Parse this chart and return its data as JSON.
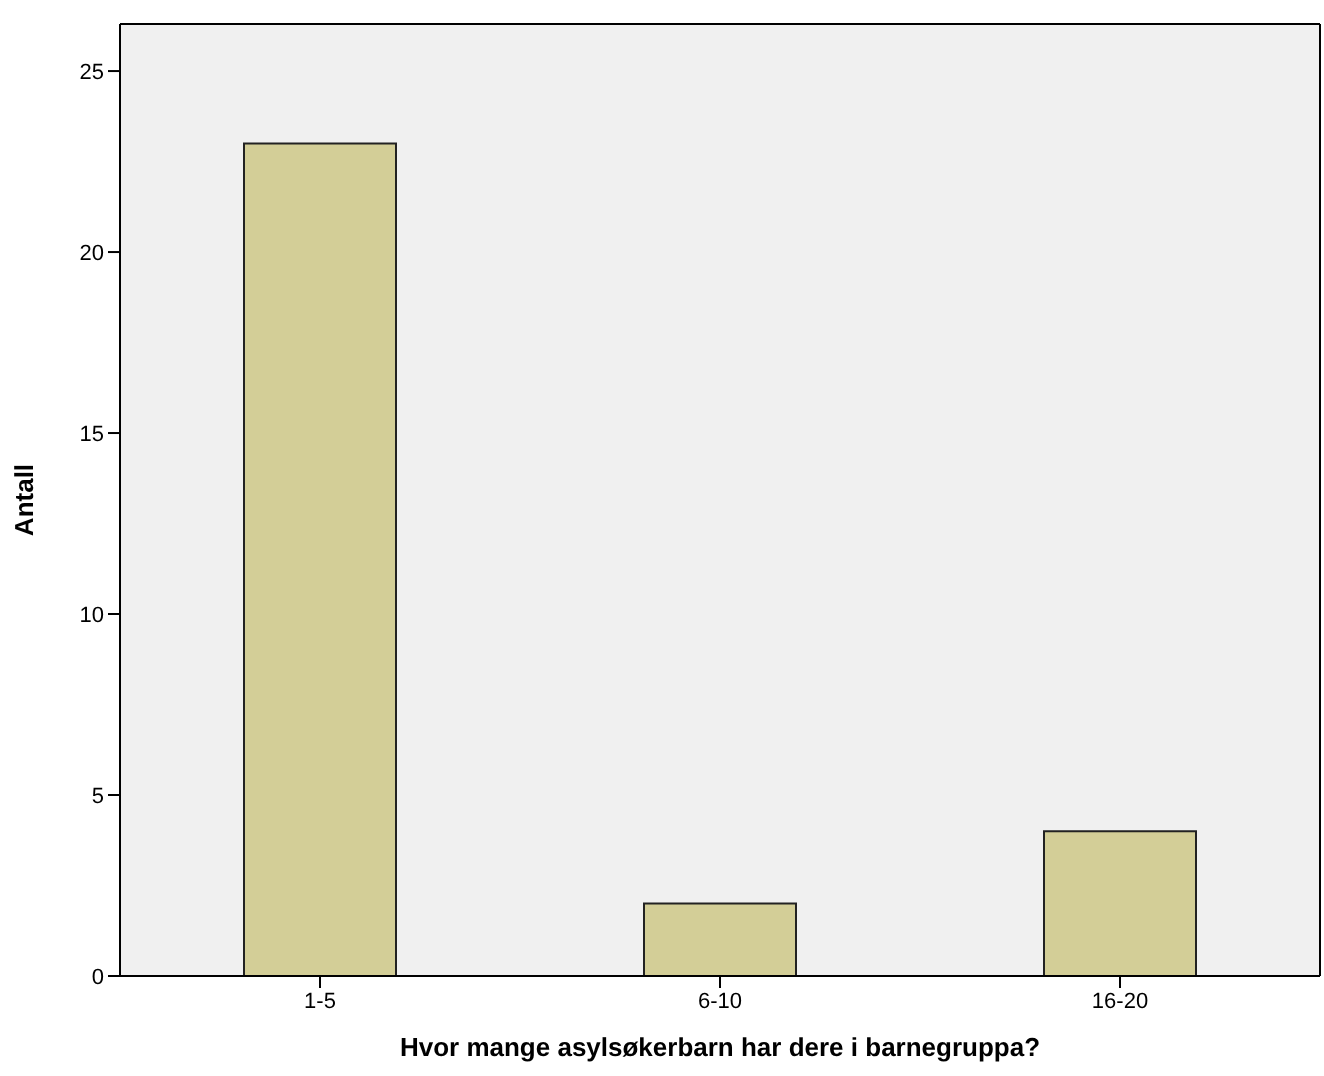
{
  "chart_data": {
    "type": "bar",
    "xlabel": "Hvor mange asylsøkerbarn har dere i barnegruppa?",
    "ylabel": "Antall",
    "categories": [
      "1-5",
      "6-10",
      "16-20"
    ],
    "values": [
      23,
      2,
      4
    ],
    "color": "#d3ce97",
    "ylim": [
      0,
      26.3
    ],
    "yticks": [
      0,
      5,
      10,
      15,
      20,
      25
    ],
    "grid": false
  }
}
